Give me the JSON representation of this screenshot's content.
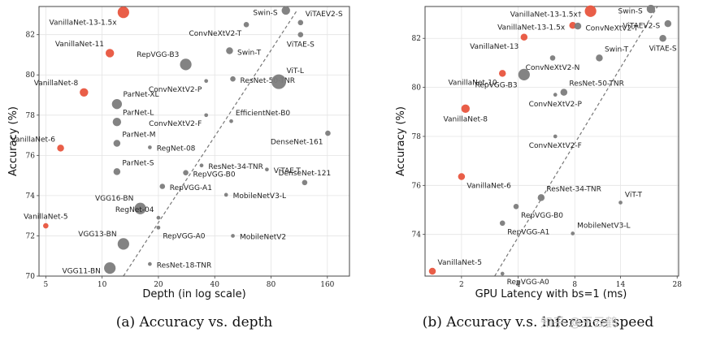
{
  "watermark": "知乎 @王云鹤",
  "colors": {
    "vanilla": "#e8553e",
    "other": "#7c7c7c",
    "trend": "#777777",
    "frame": "#444444"
  },
  "chart_data": [
    {
      "type": "scatter",
      "title": "",
      "caption": "(a) Accuracy vs. depth",
      "xlabel": "Depth (in log scale)",
      "ylabel": "Accuracy (%)",
      "xscale": "log",
      "xlim": [
        4.6,
        210
      ],
      "ylim": [
        70,
        83.4
      ],
      "xticks": [
        5,
        10,
        20,
        40,
        80,
        160
      ],
      "xtick_labels": [
        "5",
        "10",
        "20",
        "40",
        "80",
        "160"
      ],
      "yticks": [
        70,
        72,
        74,
        76,
        78,
        80,
        82
      ],
      "ytick_labels": [
        "70",
        "72",
        "74",
        "76",
        "78",
        "80",
        "82"
      ],
      "grid": true,
      "trendline": [
        [
          13,
          70
        ],
        [
          110,
          83.2
        ]
      ],
      "points": [
        {
          "name": "VanillaNet-5",
          "x": 5,
          "y": 72.5,
          "size": 2,
          "group": "vanilla",
          "label_pos": "above"
        },
        {
          "name": "VanillaNet-6",
          "x": 6,
          "y": 76.36,
          "size": 3,
          "group": "vanilla",
          "label_pos": "above-left"
        },
        {
          "name": "VanillaNet-8",
          "x": 8,
          "y": 79.13,
          "size": 4,
          "group": "vanilla",
          "label_pos": "above-left"
        },
        {
          "name": "VanillaNet-11",
          "x": 11,
          "y": 81.08,
          "size": 4,
          "group": "vanilla",
          "label_pos": "above-left"
        },
        {
          "name": "VanillaNet-13-1.5x",
          "x": 13,
          "y": 83.11,
          "size": 6,
          "group": "vanilla",
          "label_pos": "below-left"
        },
        {
          "name": "VGG11-BN",
          "x": 11,
          "y": 70.4,
          "size": 6,
          "group": "other",
          "label_pos": "left"
        },
        {
          "name": "VGG13-BN",
          "x": 13,
          "y": 71.6,
          "size": 6,
          "group": "other",
          "label_pos": "above-left"
        },
        {
          "name": "VGG16-BN",
          "x": 16,
          "y": 73.36,
          "size": 6,
          "group": "other",
          "label_pos": "above-left"
        },
        {
          "name": "ParNet-S",
          "x": 12,
          "y": 75.19,
          "size": 3,
          "group": "other",
          "label_pos": "above-right"
        },
        {
          "name": "ParNet-M",
          "x": 12,
          "y": 76.6,
          "size": 3,
          "group": "other",
          "label_pos": "above-right"
        },
        {
          "name": "ParNet-L",
          "x": 12,
          "y": 77.66,
          "size": 4,
          "group": "other",
          "label_pos": "above-right"
        },
        {
          "name": "ParNet-XL",
          "x": 12,
          "y": 78.55,
          "size": 5,
          "group": "other",
          "label_pos": "above-right"
        },
        {
          "name": "RegNet-04",
          "x": 20,
          "y": 72.9,
          "size": 1,
          "group": "other",
          "label_pos": "above-left"
        },
        {
          "name": "RegNet-08",
          "x": 18,
          "y": 76.4,
          "size": 1,
          "group": "other",
          "label_pos": "right"
        },
        {
          "name": "RepVGG-A0",
          "x": 20,
          "y": 72.41,
          "size": 1,
          "group": "other",
          "label_pos": "below-right"
        },
        {
          "name": "RepVGG-A1",
          "x": 21,
          "y": 74.46,
          "size": 2,
          "group": "other",
          "label_pos": "right"
        },
        {
          "name": "RepVGG-B0",
          "x": 28,
          "y": 75.14,
          "size": 2,
          "group": "other",
          "label_pos": "right"
        },
        {
          "name": "RepVGG-B3",
          "x": 28,
          "y": 80.52,
          "size": 6,
          "group": "other",
          "label_pos": "above-left"
        },
        {
          "name": "ResNet-18-TNR",
          "x": 18,
          "y": 70.6,
          "size": 1,
          "group": "other",
          "label_pos": "right"
        },
        {
          "name": "ResNet-34-TNR",
          "x": 34,
          "y": 75.5,
          "size": 1,
          "group": "other",
          "label_pos": "right"
        },
        {
          "name": "ResNet-50-TNR",
          "x": 50,
          "y": 79.8,
          "size": 2,
          "group": "other",
          "label_pos": "right"
        },
        {
          "name": "ConvNeXtV2-F",
          "x": 36,
          "y": 78.0,
          "size": 1,
          "group": "other",
          "label_pos": "below-left"
        },
        {
          "name": "ConvNeXtV2-P",
          "x": 36,
          "y": 79.7,
          "size": 1,
          "group": "other",
          "label_pos": "below-left"
        },
        {
          "name": "ConvNeXtV2-T",
          "x": 59,
          "y": 82.5,
          "size": 2,
          "group": "other",
          "label_pos": "below-left"
        },
        {
          "name": "EfficientNet-B0",
          "x": 49,
          "y": 77.7,
          "size": 1,
          "group": "other",
          "label_pos": "above-right"
        },
        {
          "name": "MobileNetV3-L",
          "x": 46,
          "y": 74.04,
          "size": 1,
          "group": "other",
          "label_pos": "right"
        },
        {
          "name": "MobileNetV2",
          "x": 50,
          "y": 72.0,
          "size": 1,
          "group": "other",
          "label_pos": "right"
        },
        {
          "name": "Swin-T",
          "x": 48,
          "y": 81.2,
          "size": 3,
          "group": "other",
          "label_pos": "right"
        },
        {
          "name": "Swin-S",
          "x": 96,
          "y": 83.2,
          "size": 4,
          "group": "other",
          "label_pos": "left"
        },
        {
          "name": "ViT-L",
          "x": 88,
          "y": 79.66,
          "size": 8,
          "group": "other",
          "label_pos": "above-right"
        },
        {
          "name": "ViTAE-T",
          "x": 76,
          "y": 75.3,
          "size": 1,
          "group": "other",
          "label_pos": "right"
        },
        {
          "name": "ViTAEV2-S",
          "x": 115,
          "y": 82.6,
          "size": 2,
          "group": "other",
          "label_pos": "above-right"
        },
        {
          "name": "ViTAE-S",
          "x": 115,
          "y": 82.0,
          "size": 2,
          "group": "other",
          "label_pos": "below"
        },
        {
          "name": "DenseNet-121",
          "x": 121,
          "y": 74.65,
          "size": 2,
          "group": "other",
          "label_pos": "above"
        },
        {
          "name": "DenseNet-161",
          "x": 161,
          "y": 77.1,
          "size": 2,
          "group": "other",
          "label_pos": "below-left"
        }
      ]
    },
    {
      "type": "scatter",
      "title": "",
      "caption": "(b) Accuracy v.s. inference speed",
      "xlabel": "GPU Latency with bs=1 (ms)",
      "ylabel": "Accuracy (%)",
      "xscale": "log",
      "xlim": [
        1.28,
        28.5
      ],
      "ylim": [
        72.3,
        83.3
      ],
      "xticks": [
        2,
        4,
        8,
        14,
        28
      ],
      "xtick_labels": [
        "2",
        "4",
        "8",
        "14",
        "28"
      ],
      "yticks": [
        74,
        76,
        78,
        80,
        82
      ],
      "ytick_labels": [
        "74",
        "76",
        "78",
        "80",
        "82"
      ],
      "grid": true,
      "trendline": [
        [
          3.0,
          72.3
        ],
        [
          22,
          83.3
        ]
      ],
      "points": [
        {
          "name": "VanillaNet-5",
          "x": 1.4,
          "y": 72.5,
          "size": 3,
          "group": "vanilla",
          "label_pos": "above-right"
        },
        {
          "name": "VanillaNet-6",
          "x": 2.0,
          "y": 76.36,
          "size": 3,
          "group": "vanilla",
          "label_pos": "below-right"
        },
        {
          "name": "VanillaNet-8",
          "x": 2.1,
          "y": 79.13,
          "size": 4,
          "group": "vanilla",
          "label_pos": "below"
        },
        {
          "name": "VanillaNet-10",
          "x": 3.3,
          "y": 80.57,
          "size": 3,
          "group": "vanilla",
          "label_pos": "below-left"
        },
        {
          "name": "VanillaNet-13",
          "x": 4.3,
          "y": 82.05,
          "size": 3,
          "group": "vanilla",
          "label_pos": "below-left"
        },
        {
          "name": "VanillaNet-13-1.5x",
          "x": 7.8,
          "y": 82.53,
          "size": 3,
          "group": "vanilla",
          "label_pos": "left"
        },
        {
          "name": "VanillaNet-13-1.5x†",
          "x": 9.7,
          "y": 83.11,
          "size": 6,
          "group": "vanilla",
          "label_pos": "left"
        },
        {
          "name": "RepVGG-A0",
          "x": 3.3,
          "y": 72.4,
          "size": 1,
          "group": "other",
          "label_pos": "below-right"
        },
        {
          "name": "RepVGG-A1",
          "x": 3.3,
          "y": 74.46,
          "size": 2,
          "group": "other",
          "label_pos": "below-right"
        },
        {
          "name": "RepVGG-B0",
          "x": 3.9,
          "y": 75.14,
          "size": 2,
          "group": "other",
          "label_pos": "below-right"
        },
        {
          "name": "RepVGG-B3",
          "x": 4.3,
          "y": 80.52,
          "size": 6,
          "group": "other",
          "label_pos": "below-left"
        },
        {
          "name": "ResNet-34-TNR",
          "x": 5.3,
          "y": 75.5,
          "size": 3,
          "group": "other",
          "label_pos": "above-right"
        },
        {
          "name": "ResNet-50-TNR",
          "x": 7.0,
          "y": 79.8,
          "size": 3,
          "group": "other",
          "label_pos": "above-right"
        },
        {
          "name": "ConvNeXtV2-F",
          "x": 6.3,
          "y": 78.0,
          "size": 1,
          "group": "other",
          "label_pos": "below"
        },
        {
          "name": "ConvNeXtV2-P",
          "x": 6.3,
          "y": 79.7,
          "size": 1,
          "group": "other",
          "label_pos": "below"
        },
        {
          "name": "ConvNeXtV2-N",
          "x": 6.1,
          "y": 81.2,
          "size": 2,
          "group": "other",
          "label_pos": "below"
        },
        {
          "name": "ConvNeXtV2-T",
          "x": 8.3,
          "y": 82.5,
          "size": 3,
          "group": "other",
          "label_pos": "right"
        },
        {
          "name": "MobileNetV3-L",
          "x": 7.8,
          "y": 74.04,
          "size": 1,
          "group": "other",
          "label_pos": "above-right"
        },
        {
          "name": "Swin-T",
          "x": 10.8,
          "y": 81.2,
          "size": 3,
          "group": "other",
          "label_pos": "above-right"
        },
        {
          "name": "Swin-S",
          "x": 20.3,
          "y": 83.2,
          "size": 4,
          "group": "other",
          "label_pos": "left"
        },
        {
          "name": "ViT-T",
          "x": 14.0,
          "y": 75.3,
          "size": 1,
          "group": "other",
          "label_pos": "above-right"
        },
        {
          "name": "ViTAEV2-S",
          "x": 25.0,
          "y": 82.6,
          "size": 3,
          "group": "other",
          "label_pos": "left"
        },
        {
          "name": "ViTAE-S",
          "x": 23.5,
          "y": 82.0,
          "size": 3,
          "group": "other",
          "label_pos": "below"
        }
      ]
    }
  ]
}
